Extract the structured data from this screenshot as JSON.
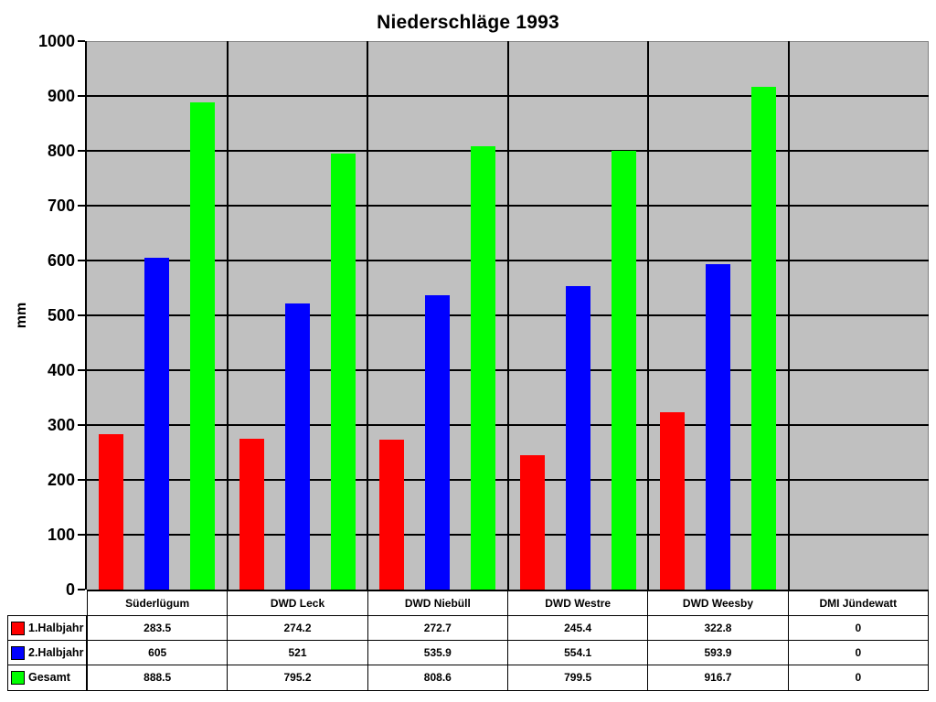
{
  "chart_data": {
    "type": "bar",
    "title": "Niederschläge 1993",
    "ylabel": "mm",
    "ylim": [
      0,
      1000
    ],
    "ytick_step": 100,
    "yticks": [
      0,
      100,
      200,
      300,
      400,
      500,
      600,
      700,
      800,
      900,
      1000
    ],
    "grid": true,
    "plot_bg_color": "#c0c0c0",
    "gridline_color": "#000000",
    "legend_position": "table-left",
    "categories": [
      "Süderlügum",
      "DWD Leck",
      "DWD Niebüll",
      "DWD Westre",
      "DWD Weesby",
      "DMI Jündewatt"
    ],
    "series": [
      {
        "name": "1.Halbjahr",
        "color": "#ff0000",
        "values": [
          283.5,
          274.2,
          272.7,
          245.4,
          322.8,
          0
        ]
      },
      {
        "name": "2.Halbjahr",
        "color": "#0000ff",
        "values": [
          605,
          521,
          535.9,
          554.1,
          593.9,
          0
        ]
      },
      {
        "name": "Gesamt",
        "color": "#00ff00",
        "values": [
          888.5,
          795.2,
          808.6,
          799.5,
          916.7,
          0
        ]
      }
    ]
  }
}
